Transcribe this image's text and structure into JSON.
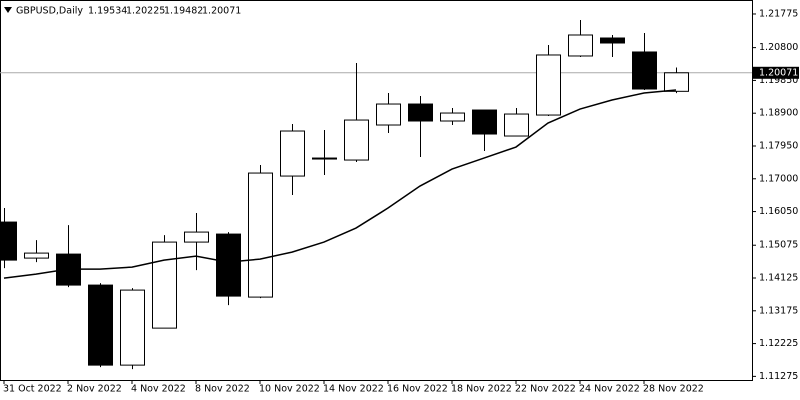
{
  "chart_data": {
    "type": "candlestick",
    "title": "GBPUSD,Daily",
    "header_values": [
      1.19534,
      1.20225,
      1.19482,
      1.20071
    ],
    "categories": [
      "31 Oct 2022",
      null,
      "2 Nov 2022",
      null,
      "4 Nov 2022",
      null,
      "8 Nov 2022",
      null,
      "10 Nov 2022",
      null,
      "14 Nov 2022",
      null,
      "16 Nov 2022",
      null,
      "18 Nov 2022",
      null,
      "22 Nov 2022",
      null,
      "24 Nov 2022",
      null,
      "28 Nov 2022",
      null
    ],
    "open": [
      1.15746,
      1.14702,
      1.14818,
      1.1392,
      1.11601,
      1.12673,
      1.15166,
      1.15398,
      1.13572,
      1.17079,
      1.17572,
      1.17543,
      1.18558,
      1.19166,
      1.18674,
      1.18992,
      1.18239,
      1.18847,
      1.20558,
      1.21079,
      1.20674,
      1.19534
    ],
    "high": [
      1.16152,
      1.15224,
      1.15659,
      1.13978,
      1.13833,
      1.15369,
      1.16007,
      1.15456,
      1.17398,
      1.18587,
      1.18413,
      1.20355,
      1.19485,
      1.19398,
      1.1905,
      1.18992,
      1.1905,
      1.20876,
      1.21601,
      1.21166,
      1.21224,
      1.20225
    ],
    "low": [
      1.14413,
      1.14586,
      1.13862,
      1.11543,
      1.11485,
      1.12673,
      1.14355,
      1.1334,
      1.13543,
      1.16529,
      1.17108,
      1.17485,
      1.18326,
      1.1763,
      1.18558,
      1.17804,
      1.18239,
      1.18818,
      1.20529,
      1.20529,
      1.19572,
      1.19482
    ],
    "close": [
      1.14644,
      1.14847,
      1.1392,
      1.11601,
      1.13775,
      1.15166,
      1.15456,
      1.13601,
      1.17166,
      1.18384,
      1.17601,
      1.18702,
      1.19166,
      1.18674,
      1.18905,
      1.18297,
      1.18876,
      1.20587,
      1.21166,
      1.20934,
      1.19601,
      1.20071
    ],
    "ma": [
      1.14123,
      1.14239,
      1.14384,
      1.14384,
      1.14442,
      1.14644,
      1.1476,
      1.14586,
      1.14673,
      1.14876,
      1.15166,
      1.15572,
      1.16152,
      1.16789,
      1.17282,
      1.17601,
      1.1792,
      1.18616,
      1.19021,
      1.19282,
      1.19485,
      1.19572
    ],
    "up_color": "#ffffff",
    "down_color": "#000000",
    "price_label": 1.20071,
    "ylim": [
      1.1117,
      1.2218
    ],
    "yticks": [
      1.21775,
      {
        "value": 1.208,
        "label": "1.20800"
      },
      {
        "value": 1.1985,
        "label": "1.19850"
      },
      {
        "value": 1.189,
        "label": "1.18900"
      },
      {
        "value": 1.1795,
        "label": "1.17950"
      },
      {
        "value": 1.17,
        "label": "1.17000"
      },
      {
        "value": 1.1605,
        "label": "1.16050"
      },
      1.15075,
      1.14125,
      1.13175,
      1.12225,
      1.11275
    ]
  }
}
